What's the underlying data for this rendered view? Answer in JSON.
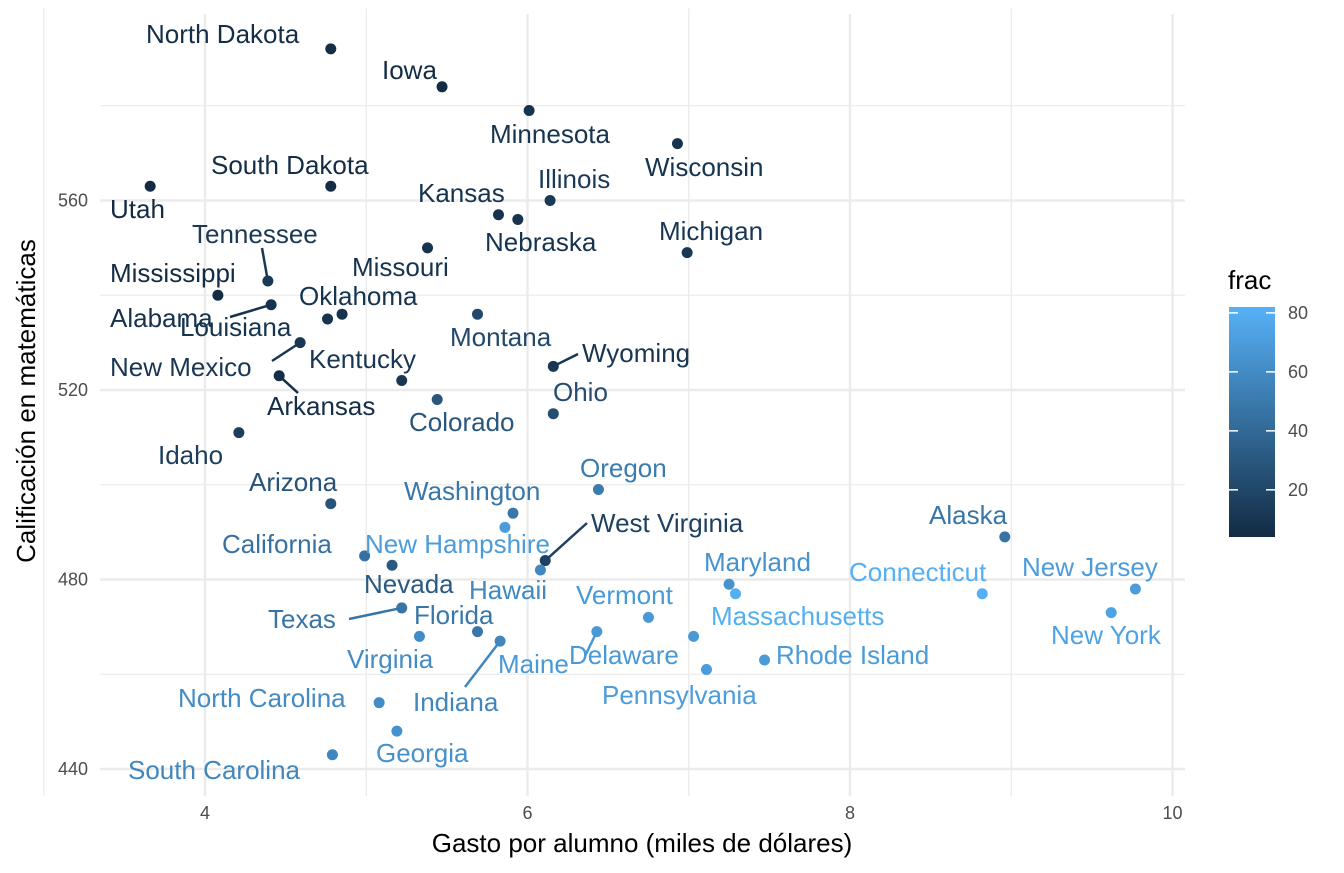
{
  "chart_data": {
    "type": "scatter",
    "xlabel": "Gasto por alumno (miles de dólares)",
    "ylabel": "Calificación en matemáticas",
    "xlim": [
      3.4,
      10.1
    ],
    "ylim": [
      437,
      602
    ],
    "x_ticks": [
      4,
      6,
      8,
      10
    ],
    "y_ticks": [
      440,
      480,
      520,
      560
    ],
    "grid": true,
    "color_by": "frac",
    "legend": {
      "title": "frac",
      "position": "right",
      "ticks": [
        20,
        40,
        60,
        80
      ],
      "range": [
        4,
        82
      ],
      "colors": [
        "#132b43",
        "#56b1f7"
      ]
    },
    "points": [
      {
        "label": "North Dakota",
        "x": 4.78,
        "y": 592,
        "frac": 6
      },
      {
        "label": "Iowa",
        "x": 5.47,
        "y": 584,
        "frac": 5
      },
      {
        "label": "Minnesota",
        "x": 6.01,
        "y": 579,
        "frac": 9
      },
      {
        "label": "Wisconsin",
        "x": 6.93,
        "y": 572,
        "frac": 9
      },
      {
        "label": "Utah",
        "x": 3.66,
        "y": 563,
        "frac": 4
      },
      {
        "label": "South Dakota",
        "x": 4.78,
        "y": 563,
        "frac": 5
      },
      {
        "label": "Kansas",
        "x": 5.82,
        "y": 557,
        "frac": 9
      },
      {
        "label": "Nebraska",
        "x": 5.94,
        "y": 556,
        "frac": 9
      },
      {
        "label": "Illinois",
        "x": 6.14,
        "y": 560,
        "frac": 13
      },
      {
        "label": "Michigan",
        "x": 6.99,
        "y": 549,
        "frac": 11
      },
      {
        "label": "Missouri",
        "x": 5.38,
        "y": 550,
        "frac": 9
      },
      {
        "label": "Tennessee",
        "x": 4.39,
        "y": 543,
        "frac": 12
      },
      {
        "label": "Mississippi",
        "x": 4.08,
        "y": 540,
        "frac": 4
      },
      {
        "label": "Alabama",
        "x": 4.41,
        "y": 538,
        "frac": 8
      },
      {
        "label": "Louisiana",
        "x": 4.76,
        "y": 535,
        "frac": 9
      },
      {
        "label": "Oklahoma",
        "x": 4.85,
        "y": 536,
        "frac": 9
      },
      {
        "label": "Montana",
        "x": 5.69,
        "y": 536,
        "frac": 21
      },
      {
        "label": "Wyoming",
        "x": 6.16,
        "y": 525,
        "frac": 10
      },
      {
        "label": "New Mexico",
        "x": 4.59,
        "y": 530,
        "frac": 11
      },
      {
        "label": "Kentucky",
        "x": 5.22,
        "y": 522,
        "frac": 11
      },
      {
        "label": "Arkansas",
        "x": 4.46,
        "y": 523,
        "frac": 6
      },
      {
        "label": "Colorado",
        "x": 5.44,
        "y": 518,
        "frac": 29
      },
      {
        "label": "Ohio",
        "x": 6.16,
        "y": 515,
        "frac": 24
      },
      {
        "label": "Idaho",
        "x": 4.21,
        "y": 511,
        "frac": 15
      },
      {
        "label": "Oregon",
        "x": 6.44,
        "y": 499,
        "frac": 51
      },
      {
        "label": "Arizona",
        "x": 4.78,
        "y": 496,
        "frac": 27
      },
      {
        "label": "Washington",
        "x": 5.91,
        "y": 494,
        "frac": 48
      },
      {
        "label": "West Virginia",
        "x": 6.11,
        "y": 484,
        "frac": 17
      },
      {
        "label": "New Hampshire",
        "x": 5.86,
        "y": 491,
        "frac": 70
      },
      {
        "label": "California",
        "x": 4.99,
        "y": 485,
        "frac": 45
      },
      {
        "label": "Nevada",
        "x": 5.16,
        "y": 483,
        "frac": 31
      },
      {
        "label": "Hawaii",
        "x": 6.08,
        "y": 482,
        "frac": 58
      },
      {
        "label": "Alaska",
        "x": 8.96,
        "y": 489,
        "frac": 47
      },
      {
        "label": "Maryland",
        "x": 7.25,
        "y": 479,
        "frac": 64
      },
      {
        "label": "Massachusetts",
        "x": 7.29,
        "y": 477,
        "frac": 80
      },
      {
        "label": "Connecticut",
        "x": 8.82,
        "y": 477,
        "frac": 81
      },
      {
        "label": "New Jersey",
        "x": 9.77,
        "y": 478,
        "frac": 70
      },
      {
        "label": "New York",
        "x": 9.62,
        "y": 473,
        "frac": 74
      },
      {
        "label": "Texas",
        "x": 5.22,
        "y": 474,
        "frac": 47
      },
      {
        "label": "Vermont",
        "x": 6.75,
        "y": 472,
        "frac": 68
      },
      {
        "label": "Florida",
        "x": 5.69,
        "y": 469,
        "frac": 48
      },
      {
        "label": "Virginia",
        "x": 5.33,
        "y": 468,
        "frac": 60
      },
      {
        "label": "Indiana",
        "x": 5.83,
        "y": 467,
        "frac": 57
      },
      {
        "label": "Maine",
        "x": 6.43,
        "y": 469,
        "frac": 68
      },
      {
        "label": "Delaware",
        "x": 7.03,
        "y": 468,
        "frac": 68
      },
      {
        "label": "Pennsylvania",
        "x": 7.11,
        "y": 461,
        "frac": 70
      },
      {
        "label": "Rhode Island",
        "x": 7.47,
        "y": 463,
        "frac": 69
      },
      {
        "label": "North Carolina",
        "x": 5.08,
        "y": 454,
        "frac": 60
      },
      {
        "label": "Georgia",
        "x": 5.19,
        "y": 448,
        "frac": 63
      },
      {
        "label": "South Carolina",
        "x": 4.79,
        "y": 443,
        "frac": 57
      }
    ]
  }
}
